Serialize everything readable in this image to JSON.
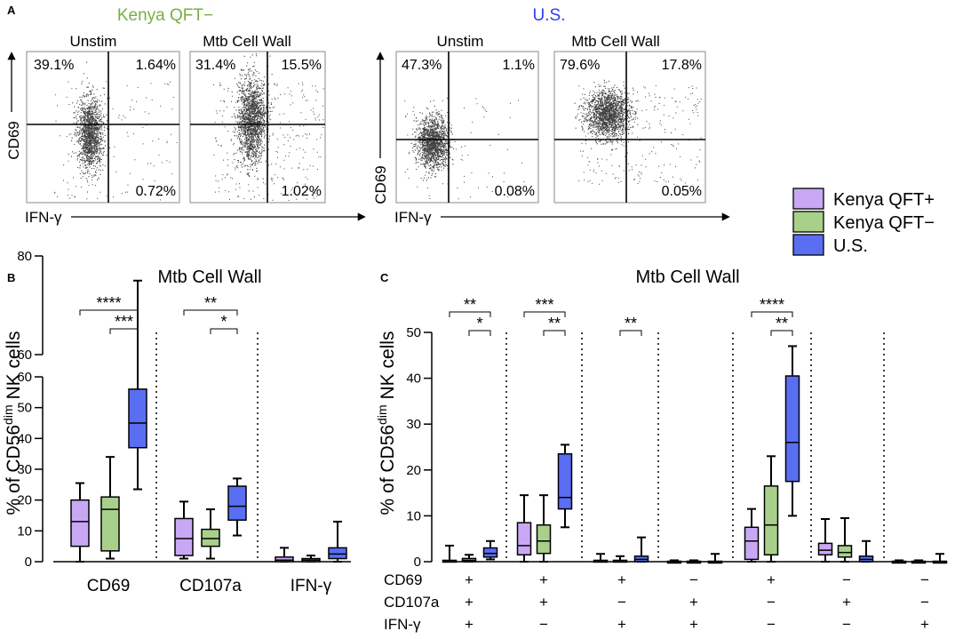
{
  "panel_labels": {
    "a": "A",
    "b": "B",
    "c": "C"
  },
  "panel_a": {
    "kenya_title": "Kenya QFT−",
    "us_title": "U.S.",
    "title_colors": {
      "kenya": "#76b041",
      "us": "#2f3ef0"
    },
    "plots": [
      {
        "title": "Unstim",
        "ul": "39.1%",
        "ur": "1.64%",
        "lr": "0.72%"
      },
      {
        "title": "Mtb Cell Wall",
        "ul": "31.4%",
        "ur": "15.5%",
        "lr": "1.02%"
      },
      {
        "title": "Unstim",
        "ul": "47.3%",
        "ur": "1.1%",
        "lr": "0.08%"
      },
      {
        "title": "Mtb Cell Wall",
        "ul": "79.6%",
        "ur": "17.8%",
        "lr": "0.05%"
      }
    ],
    "y_axis_label": "CD69",
    "x_axis_label": "IFN-γ"
  },
  "legend": [
    {
      "label": "Kenya QFT+",
      "color": "#c8a8f4"
    },
    {
      "label": "Kenya QFT−",
      "color": "#a8d08a"
    },
    {
      "label": "U.S.",
      "color": "#5a6ef2"
    }
  ],
  "chart_data": [
    {
      "type": "box",
      "panel": "B",
      "title": "Mtb Cell Wall",
      "ylabel_prefix": "% of CD56",
      "ylabel_sup": "dim",
      "ylabel_suffix": " NK cells",
      "y_axis": {
        "segments": [
          {
            "range": [
              0,
              60
            ],
            "ticks": [
              0,
              10,
              20,
              30,
              40,
              50,
              60
            ]
          },
          {
            "range": [
              60,
              80
            ],
            "ticks": [
              60,
              80
            ]
          }
        ],
        "break_between": [
          60,
          60
        ]
      },
      "categories": [
        "CD69",
        "CD107a",
        "IFN-γ"
      ],
      "series_names": [
        "Kenya QFT+",
        "Kenya QFT−",
        "U.S."
      ],
      "boxes": [
        [
          {
            "min": 0,
            "q1": 5,
            "median": 13,
            "q3": 20,
            "max": 25.5
          },
          {
            "min": 1,
            "q1": 3.5,
            "median": 17,
            "q3": 21,
            "max": 34
          },
          {
            "min": 23.5,
            "q1": 37,
            "median": 45,
            "q3": 56,
            "max": 75
          }
        ],
        [
          {
            "min": 1,
            "q1": 2,
            "median": 7.5,
            "q3": 14,
            "max": 19.5
          },
          {
            "min": 1,
            "q1": 5,
            "median": 7.5,
            "q3": 10.5,
            "max": 17
          },
          {
            "min": 8.5,
            "q1": 13.5,
            "median": 18,
            "q3": 24.5,
            "max": 27
          }
        ],
        [
          {
            "min": 0,
            "q1": 0,
            "median": 0.5,
            "q3": 1.5,
            "max": 4.5
          },
          {
            "min": 0,
            "q1": 0,
            "median": 0.5,
            "q3": 1,
            "max": 2
          },
          {
            "min": 0,
            "q1": 1,
            "median": 2.5,
            "q3": 4.5,
            "max": 13
          }
        ]
      ],
      "significance": [
        {
          "category": 0,
          "from": 0,
          "to": 2,
          "label": "****"
        },
        {
          "category": 0,
          "from": 1,
          "to": 2,
          "label": "***"
        },
        {
          "category": 1,
          "from": 0,
          "to": 2,
          "label": "**"
        },
        {
          "category": 1,
          "from": 1,
          "to": 2,
          "label": "*"
        }
      ]
    },
    {
      "type": "box",
      "panel": "C",
      "title": "Mtb Cell Wall",
      "ylabel_prefix": "% of CD56",
      "ylabel_sup": "dim",
      "ylabel_suffix": " NK cells",
      "ylim": [
        0,
        50
      ],
      "yticks": [
        0,
        10,
        20,
        30,
        40,
        50
      ],
      "series_names": [
        "Kenya QFT+",
        "Kenya QFT−",
        "U.S."
      ],
      "row_labels": [
        "CD69",
        "CD107a",
        "IFN-γ"
      ],
      "combos": [
        [
          "+",
          "+",
          "+"
        ],
        [
          "+",
          "+",
          "−"
        ],
        [
          "+",
          "−",
          "+"
        ],
        [
          "−",
          "+",
          "+"
        ],
        [
          "+",
          "−",
          "−"
        ],
        [
          "−",
          "+",
          "−"
        ],
        [
          "−",
          "−",
          "+"
        ]
      ],
      "boxes": [
        [
          {
            "min": 0,
            "q1": 0,
            "median": 0,
            "q3": 0.3,
            "max": 3.5
          },
          {
            "min": 0,
            "q1": 0,
            "median": 0.3,
            "q3": 0.7,
            "max": 1.5
          },
          {
            "min": 0.5,
            "q1": 1,
            "median": 1.8,
            "q3": 3,
            "max": 4.5
          }
        ],
        [
          {
            "min": 0,
            "q1": 1.5,
            "median": 3.5,
            "q3": 8.5,
            "max": 14.5
          },
          {
            "min": 0,
            "q1": 1.8,
            "median": 4.5,
            "q3": 8,
            "max": 14.5
          },
          {
            "min": 7.5,
            "q1": 11.5,
            "median": 14,
            "q3": 23.5,
            "max": 25.5
          }
        ],
        [
          {
            "min": 0,
            "q1": 0,
            "median": 0,
            "q3": 0.3,
            "max": 1.7
          },
          {
            "min": 0,
            "q1": 0,
            "median": 0,
            "q3": 0.3,
            "max": 1.2
          },
          {
            "min": 0,
            "q1": 0,
            "median": 0.5,
            "q3": 1.2,
            "max": 5.3
          }
        ],
        [
          {
            "min": 0,
            "q1": 0,
            "median": 0,
            "q3": 0.1,
            "max": 0.3
          },
          {
            "min": 0,
            "q1": 0,
            "median": 0,
            "q3": 0.1,
            "max": 0.3
          },
          {
            "min": 0,
            "q1": 0,
            "median": 0,
            "q3": 0.1,
            "max": 1.7
          }
        ],
        [
          {
            "min": 0,
            "q1": 0.5,
            "median": 4.5,
            "q3": 7.5,
            "max": 11.5
          },
          {
            "min": 0,
            "q1": 1.5,
            "median": 8,
            "q3": 16.5,
            "max": 23
          },
          {
            "min": 10,
            "q1": 17.5,
            "median": 26,
            "q3": 40.5,
            "max": 47
          }
        ],
        [
          {
            "min": 0,
            "q1": 1.5,
            "median": 2.5,
            "q3": 4,
            "max": 9.3
          },
          {
            "min": 0,
            "q1": 1,
            "median": 2,
            "q3": 3.5,
            "max": 9.5
          },
          {
            "min": 0,
            "q1": 0,
            "median": 0.5,
            "q3": 1.2,
            "max": 4.5
          }
        ],
        [
          {
            "min": 0,
            "q1": 0,
            "median": 0,
            "q3": 0.1,
            "max": 0.3
          },
          {
            "min": 0,
            "q1": 0,
            "median": 0,
            "q3": 0.1,
            "max": 0.3
          },
          {
            "min": 0,
            "q1": 0,
            "median": 0,
            "q3": 0.1,
            "max": 1.7
          }
        ]
      ],
      "significance": [
        {
          "group": 0,
          "from": 0,
          "to": 2,
          "label": "**"
        },
        {
          "group": 0,
          "from": 1,
          "to": 2,
          "label": "*"
        },
        {
          "group": 1,
          "from": 0,
          "to": 2,
          "label": "***"
        },
        {
          "group": 1,
          "from": 1,
          "to": 2,
          "label": "**"
        },
        {
          "group": 2,
          "from": 1,
          "to": 2,
          "label": "**"
        },
        {
          "group": 4,
          "from": 0,
          "to": 2,
          "label": "****"
        },
        {
          "group": 4,
          "from": 1,
          "to": 2,
          "label": "**"
        }
      ]
    }
  ]
}
